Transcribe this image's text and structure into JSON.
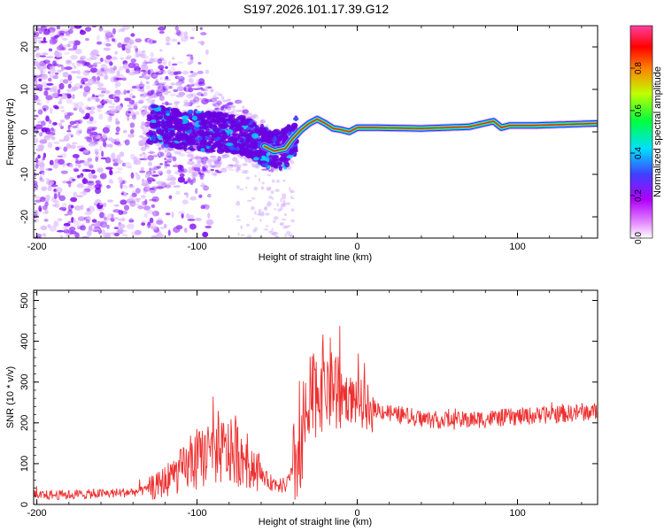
{
  "title": "S197.2026.101.17.39.G12",
  "chart_data": [
    {
      "type": "heatmap",
      "name": "spectrogram",
      "xlabel": "Height of straight line (km)",
      "ylabel": "Frequency (Hz)",
      "xlim": [
        -202,
        150
      ],
      "ylim": [
        -25,
        25
      ],
      "xticks": [
        -200,
        -100,
        0,
        100
      ],
      "xtick_labels": [
        "-200",
        "-100",
        "0",
        "100"
      ],
      "yticks": [
        -20,
        -10,
        0,
        10,
        20
      ],
      "ytick_labels": [
        "-20",
        "-10",
        "0",
        "10",
        "20"
      ],
      "ridge": {
        "x": [
          -130,
          -110,
          -90,
          -75,
          -60,
          -52,
          -45,
          -40,
          -35,
          -30,
          -25,
          -20,
          -15,
          -10,
          -5,
          0,
          10,
          40,
          70,
          85,
          90,
          95,
          110,
          150
        ],
        "freq": [
          2,
          0.5,
          0,
          -0.5,
          -3,
          -4.5,
          -4,
          -1.5,
          0.5,
          2,
          3,
          2,
          0.8,
          0.5,
          0,
          1,
          1,
          0.8,
          1.2,
          2.5,
          1,
          1.5,
          1.5,
          2
        ]
      },
      "colorbar": {
        "label": "Normalized spectral amplitude",
        "range": [
          0,
          1
        ],
        "ticks": [
          0.0,
          0.2,
          0.4,
          0.6,
          0.8
        ],
        "tick_labels": [
          "0.0",
          "0.2",
          "0.4",
          "0.6",
          "0.8"
        ],
        "colors": [
          "#ffffff",
          "#b000ff",
          "#4040ff",
          "#00e0ff",
          "#00ff40",
          "#c0ff00",
          "#ff8000",
          "#ff0000"
        ]
      }
    },
    {
      "type": "line",
      "name": "snr",
      "xlabel": "Height of straight line (km)",
      "ylabel": "SNR (10 * v/v)",
      "xlim": [
        -202,
        150
      ],
      "ylim": [
        0,
        525
      ],
      "xticks": [
        -200,
        -100,
        0,
        100
      ],
      "xtick_labels": [
        "-200",
        "-100",
        "0",
        "100"
      ],
      "yticks": [
        0,
        100,
        200,
        300,
        400,
        500
      ],
      "ytick_labels": [
        "0",
        "100",
        "200",
        "300",
        "400",
        "500"
      ],
      "color": "#ee3030",
      "x": [
        -202,
        -170,
        -150,
        -135,
        -125,
        -115,
        -105,
        -95,
        -85,
        -75,
        -65,
        -55,
        -45,
        -40,
        -35,
        -30,
        -25,
        -20,
        -15,
        -10,
        -5,
        0,
        10,
        20,
        40,
        60,
        80,
        100,
        120,
        150
      ],
      "values": [
        22,
        25,
        28,
        32,
        45,
        70,
        95,
        120,
        130,
        125,
        95,
        55,
        45,
        80,
        150,
        240,
        290,
        300,
        290,
        275,
        260,
        250,
        235,
        225,
        210,
        205,
        210,
        215,
        220,
        228
      ]
    }
  ]
}
